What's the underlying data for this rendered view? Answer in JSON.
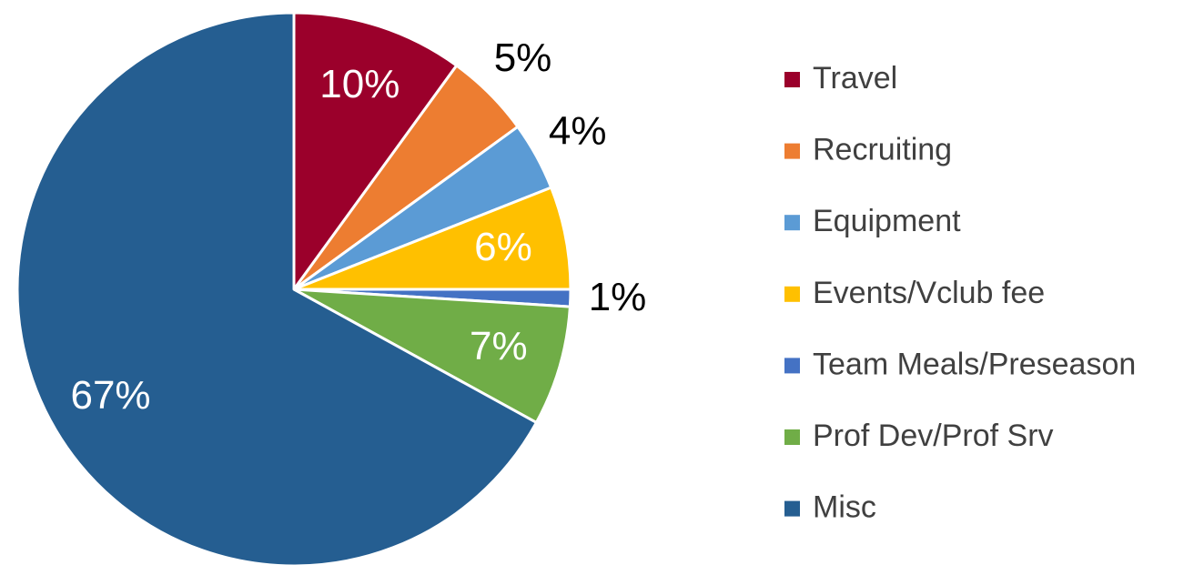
{
  "chart_data": {
    "type": "pie",
    "categories": [
      "Travel",
      "Recruiting",
      "Equipment",
      "Events/Vclub fee",
      "Team Meals/Preseason",
      "Prof Dev/Prof Srv",
      "Misc"
    ],
    "values": [
      10,
      5,
      4,
      6,
      1,
      7,
      67
    ],
    "value_labels": [
      "10%",
      "5%",
      "4%",
      "6%",
      "1%",
      "7%",
      "67%"
    ],
    "colors": [
      "#9b002b",
      "#ed7d31",
      "#5b9bd5",
      "#ffc000",
      "#4472c4",
      "#70ad47",
      "#255e91"
    ],
    "legend": "right"
  }
}
